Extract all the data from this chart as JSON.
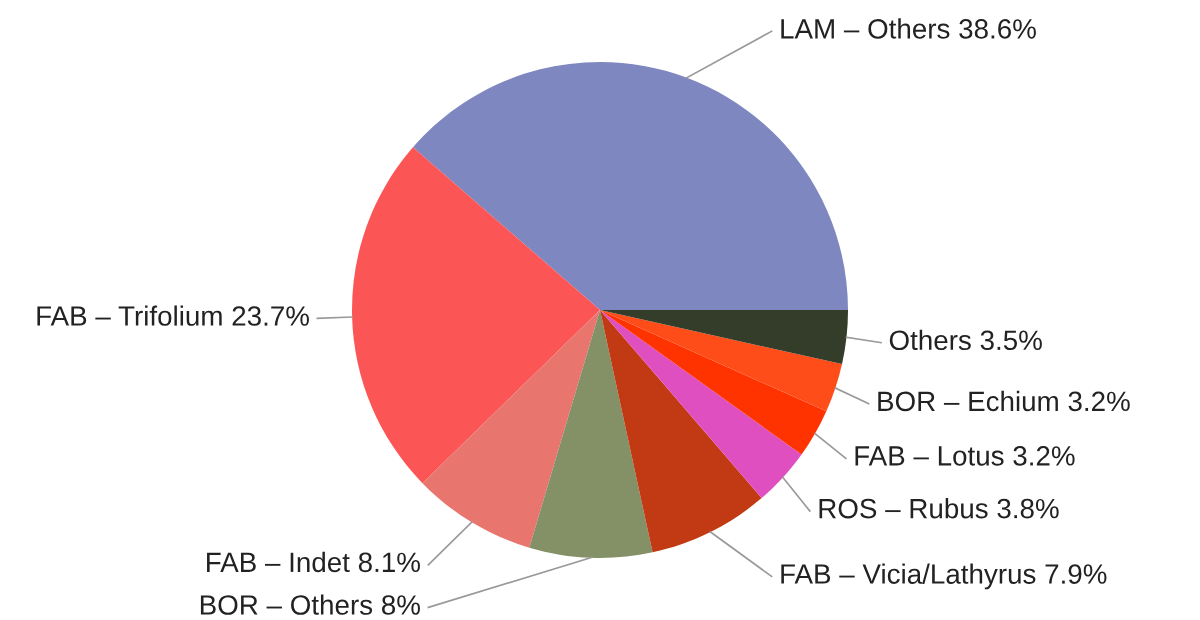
{
  "chart_data": {
    "type": "pie",
    "categories": [
      "LAM – Others",
      "FAB – Trifolium",
      "FAB – Indet",
      "BOR – Others",
      "FAB – Vicia/Lathyrus",
      "ROS – Rubus",
      "FAB – Lotus",
      "BOR – Echium",
      "Others"
    ],
    "values": [
      38.6,
      23.7,
      8.1,
      8,
      7.9,
      3.8,
      3.2,
      3.2,
      3.5
    ],
    "value_labels": [
      "38.6%",
      "23.7%",
      "8.1%",
      "8%",
      "7.9%",
      "3.8%",
      "3.2%",
      "3.2%",
      "3.5%"
    ],
    "colors": [
      "#7f87c0",
      "#fc5555",
      "#e8766f",
      "#849167",
      "#c13a14",
      "#e04fc0",
      "#ff3300",
      "#ff4d1a",
      "#333d29"
    ],
    "legend": false
  }
}
